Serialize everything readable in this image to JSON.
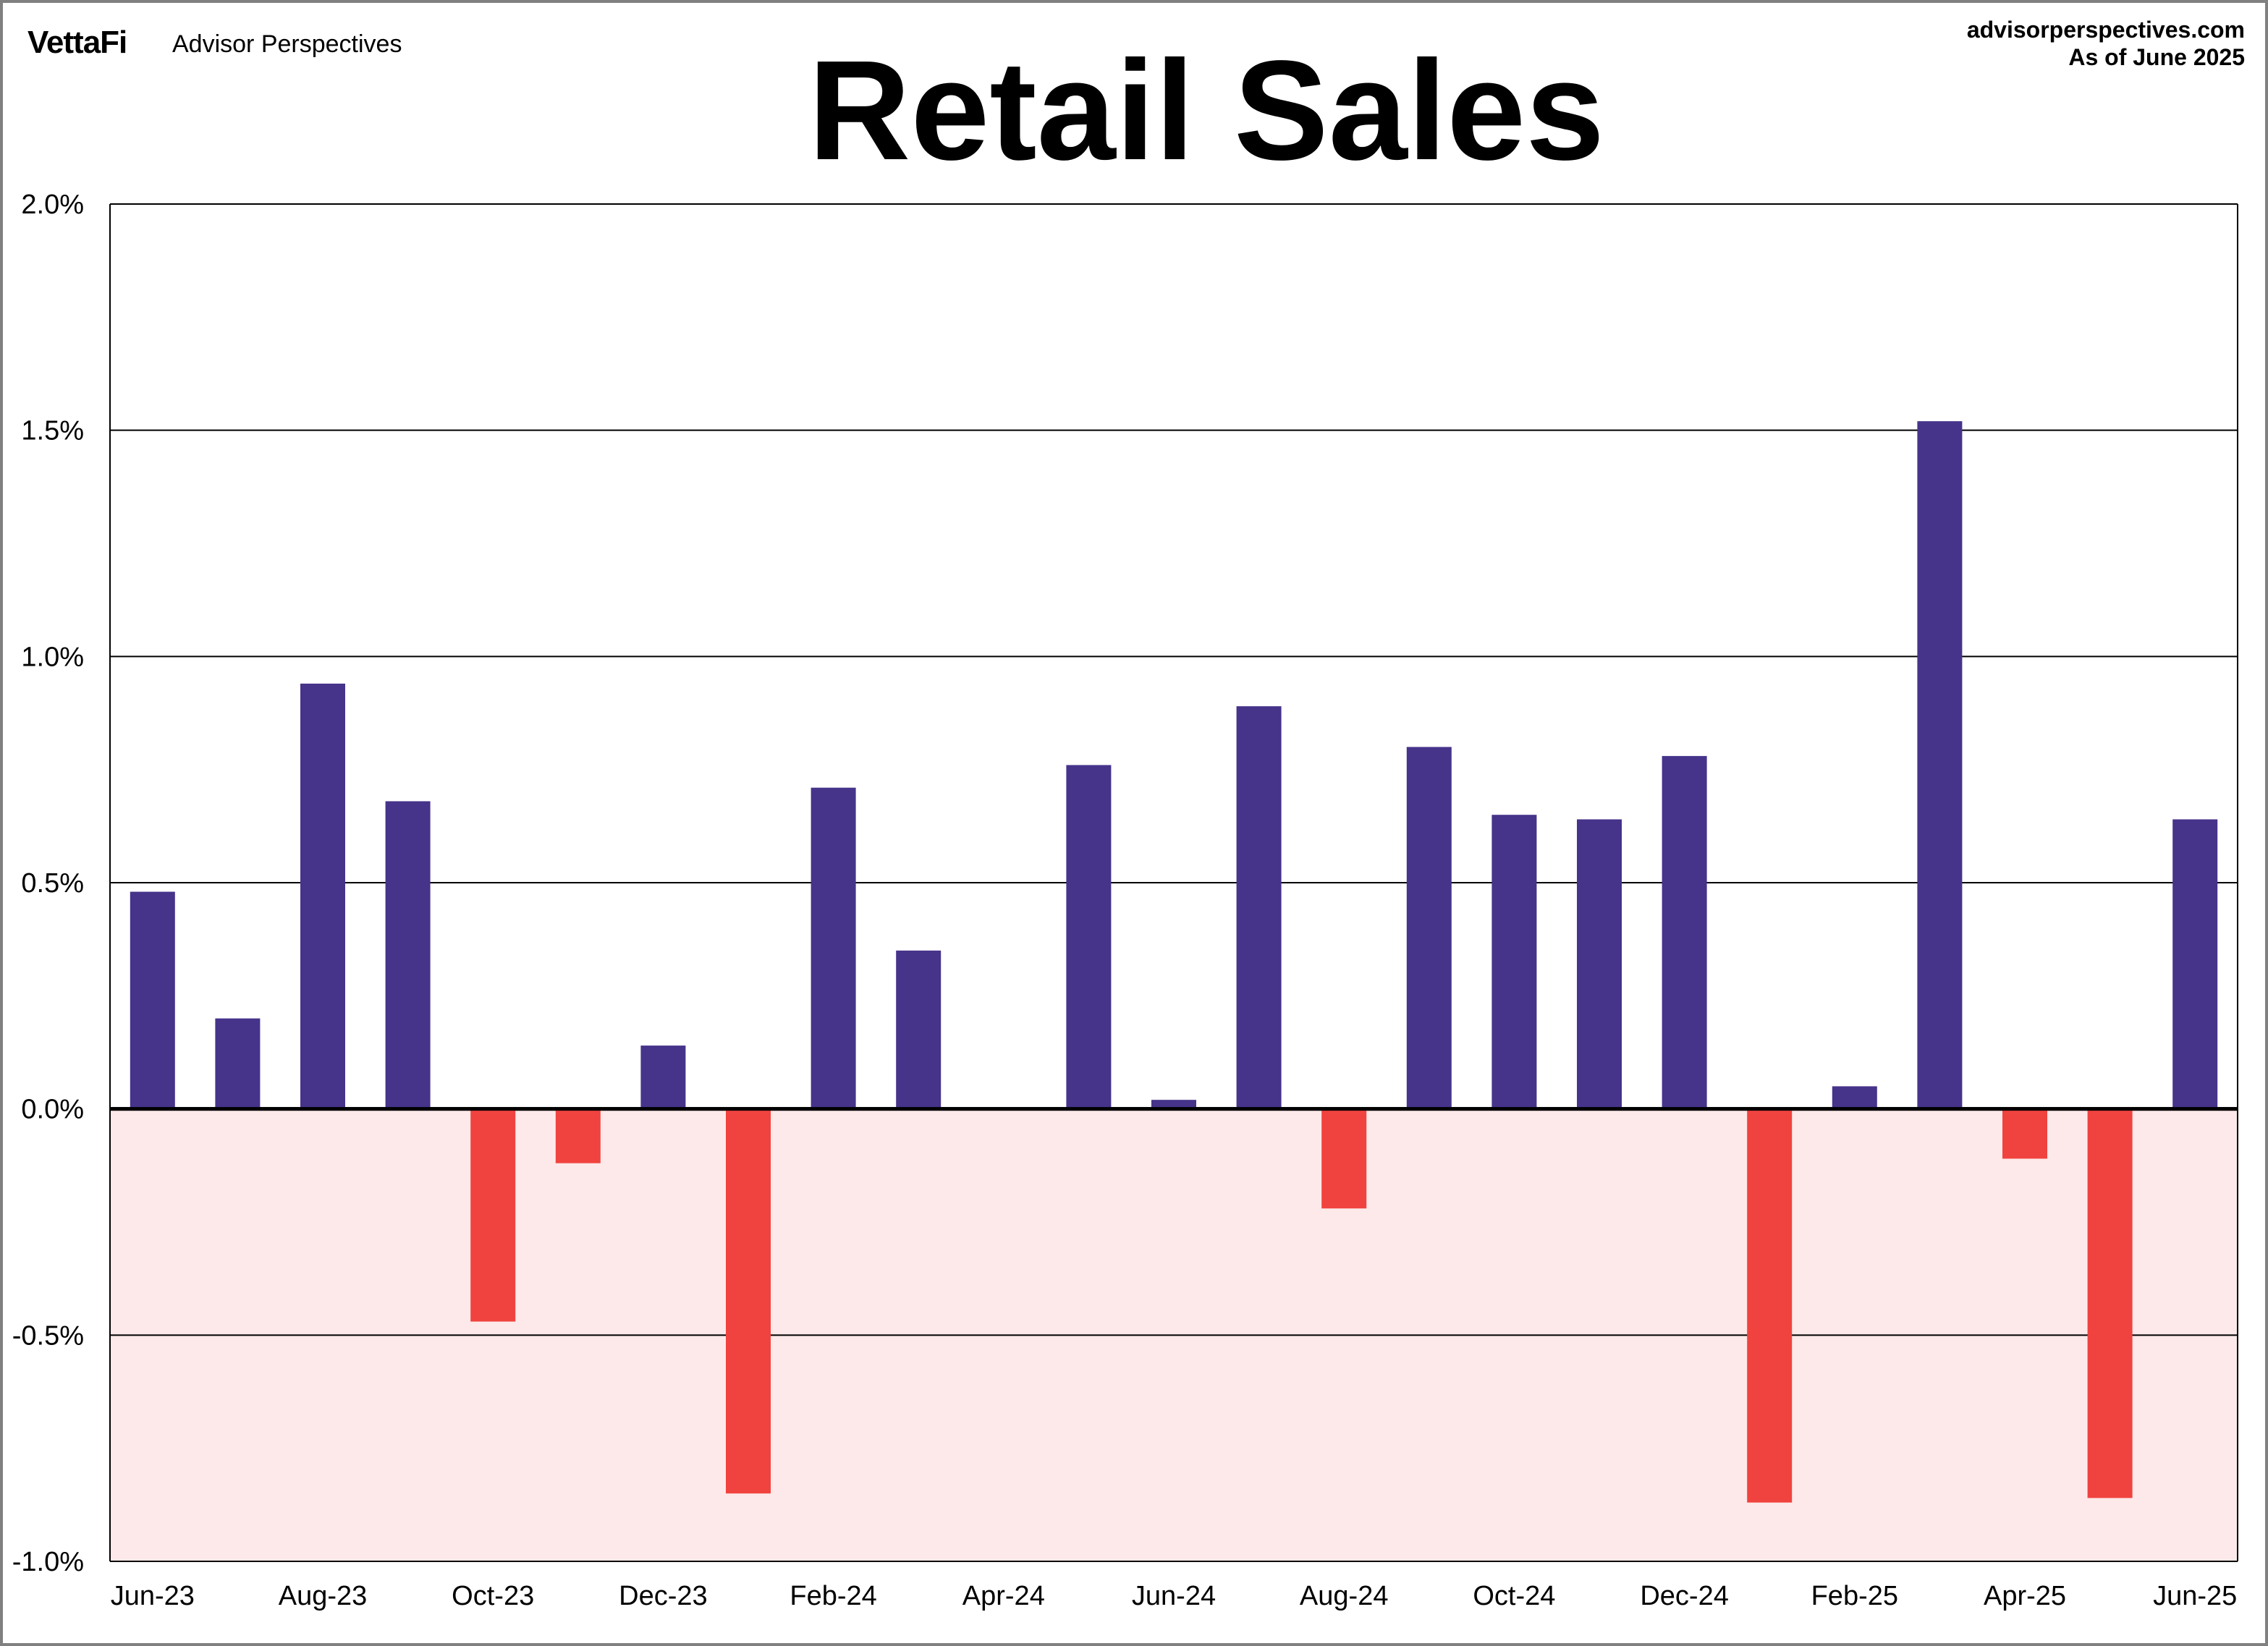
{
  "header": {
    "logo": "VettaFi",
    "brand": "Advisor Perspectives",
    "site": "advisorperspectives.com",
    "as_of": "As of June 2025"
  },
  "chart_data": {
    "type": "bar",
    "title": "Retail Sales",
    "xlabel": "",
    "ylabel": "",
    "ylim": [
      -1.0,
      2.0
    ],
    "yticks": [
      "-1.0%",
      "-0.5%",
      "0.0%",
      "0.5%",
      "1.0%",
      "1.5%",
      "2.0%"
    ],
    "ytick_values": [
      -1.0,
      -0.5,
      0.0,
      0.5,
      1.0,
      1.5,
      2.0
    ],
    "grid": true,
    "categories": [
      "Jun-23",
      "Jul-23",
      "Aug-23",
      "Sep-23",
      "Oct-23",
      "Nov-23",
      "Dec-23",
      "Jan-24",
      "Feb-24",
      "Mar-24",
      "Apr-24",
      "May-24",
      "Jun-24",
      "Jul-24",
      "Aug-24",
      "Sep-24",
      "Oct-24",
      "Nov-24",
      "Dec-24",
      "Jan-25",
      "Feb-25",
      "Mar-25",
      "Apr-25",
      "May-25",
      "Jun-25"
    ],
    "xtick_labels": [
      "Jun-23",
      "Aug-23",
      "Oct-23",
      "Dec-23",
      "Feb-24",
      "Apr-24",
      "Jun-24",
      "Aug-24",
      "Oct-24",
      "Dec-24",
      "Feb-25",
      "Apr-25",
      "Jun-25"
    ],
    "values": [
      0.48,
      0.2,
      0.94,
      0.68,
      -0.47,
      -0.12,
      0.14,
      -0.85,
      0.71,
      0.35,
      0.0,
      0.76,
      0.02,
      0.89,
      -0.22,
      0.8,
      0.65,
      0.64,
      0.78,
      -0.87,
      0.05,
      1.52,
      -0.11,
      -0.86,
      0.64
    ],
    "colors": {
      "positive": "#46338a",
      "negative": "#f0433f",
      "negative_zone": "#fde9e9"
    }
  }
}
